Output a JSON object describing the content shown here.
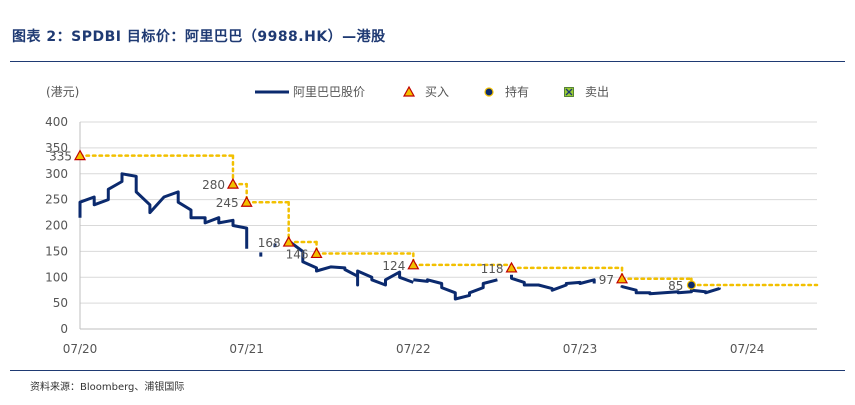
{
  "figure_title": "图表 2：SPDBI 目标价：阿里巴巴（9988.HK）—港股",
  "source": "资料来源：Bloomberg、浦银国际",
  "colors": {
    "price_line": "#0B2A6E",
    "target_line": "#F2C000",
    "buy_marker": "#F2C000",
    "hold_marker": "#0B2A6E",
    "sell_marker": "#9ACD32",
    "title": "#1F3A73"
  },
  "chart_data": {
    "type": "line",
    "ylabel": "(港元)",
    "ylim": [
      0,
      400
    ],
    "yticks": [
      0,
      50,
      100,
      150,
      200,
      250,
      300,
      350,
      400
    ],
    "xlim": [
      "2020-07",
      "2024-12"
    ],
    "xticks": [
      "07/20",
      "07/21",
      "07/22",
      "07/23",
      "07/24"
    ],
    "grid": true,
    "legend": {
      "position": "top",
      "items": [
        {
          "label": "阿里巴巴股价",
          "kind": "line"
        },
        {
          "label": "买入",
          "kind": "buy-marker"
        },
        {
          "label": "持有",
          "kind": "hold-marker"
        },
        {
          "label": "卖出",
          "kind": "sell-marker"
        }
      ]
    },
    "series": [
      {
        "name": "阿里巴巴股价",
        "segments": [
          [
            [
              "2020-07",
              215
            ],
            [
              "2020-07",
              245
            ],
            [
              "2020-08",
              255
            ],
            [
              "2020-08",
              240
            ],
            [
              "2020-09",
              250
            ],
            [
              "2020-09",
              270
            ],
            [
              "2020-10",
              285
            ],
            [
              "2020-10",
              300
            ],
            [
              "2020-11",
              295
            ],
            [
              "2020-11",
              265
            ],
            [
              "2020-12",
              240
            ],
            [
              "2020-12",
              225
            ],
            [
              "2021-01",
              255
            ],
            [
              "2021-02",
              265
            ],
            [
              "2021-02",
              245
            ],
            [
              "2021-03",
              230
            ],
            [
              "2021-03",
              215
            ],
            [
              "2021-04",
              215
            ],
            [
              "2021-04",
              205
            ],
            [
              "2021-05",
              215
            ],
            [
              "2021-05",
              205
            ],
            [
              "2021-06",
              210
            ],
            [
              "2021-06",
              200
            ],
            [
              "2021-07",
              195
            ],
            [
              "2021-07",
              185
            ],
            [
              "2021-07",
              155
            ]
          ],
          [
            [
              "2021-08",
              148
            ],
            [
              "2021-08",
              140
            ]
          ],
          [
            [
              "2021-09",
              165
            ],
            [
              "2021-09",
              158
            ]
          ],
          [
            [
              "2021-10",
              160
            ],
            [
              "2021-10",
              170
            ],
            [
              "2021-11",
              150
            ],
            [
              "2021-11",
              130
            ],
            [
              "2021-12",
              118
            ],
            [
              "2021-12",
              112
            ],
            [
              "2022-01",
              120
            ],
            [
              "2022-02",
              118
            ],
            [
              "2022-02",
              115
            ],
            [
              "2022-03",
              102
            ],
            [
              "2022-03",
              85
            ],
            [
              "2022-03",
              112
            ],
            [
              "2022-04",
              100
            ],
            [
              "2022-04",
              95
            ],
            [
              "2022-05",
              85
            ],
            [
              "2022-05",
              95
            ],
            [
              "2022-06",
              110
            ],
            [
              "2022-06",
              100
            ],
            [
              "2022-07",
              90
            ]
          ],
          [
            [
              "2022-07",
              95
            ],
            [
              "2022-08",
              92
            ],
            [
              "2022-08",
              95
            ],
            [
              "2022-09",
              88
            ],
            [
              "2022-09",
              80
            ],
            [
              "2022-10",
              70
            ],
            [
              "2022-10",
              58
            ],
            [
              "2022-11",
              65
            ],
            [
              "2022-11",
              70
            ],
            [
              "2022-12",
              80
            ],
            [
              "2022-12",
              88
            ],
            [
              "2023-01",
              95
            ]
          ],
          [
            [
              "2023-02",
              105
            ],
            [
              "2023-02",
              98
            ],
            [
              "2023-03",
              90
            ],
            [
              "2023-03",
              85
            ],
            [
              "2023-04",
              85
            ],
            [
              "2023-05",
              78
            ],
            [
              "2023-05",
              75
            ],
            [
              "2023-06",
              85
            ],
            [
              "2023-06",
              88
            ],
            [
              "2023-07",
              90
            ],
            [
              "2023-07",
              88
            ],
            [
              "2023-08",
              95
            ],
            [
              "2023-08",
              88
            ]
          ],
          [
            [
              "2023-10",
              80
            ],
            [
              "2023-10",
              82
            ],
            [
              "2023-11",
              75
            ],
            [
              "2023-11",
              70
            ],
            [
              "2023-12",
              70
            ],
            [
              "2023-12",
              68
            ],
            [
              "2024-01",
              70
            ],
            [
              "2024-02",
              72
            ],
            [
              "2024-02",
              70
            ],
            [
              "2024-03",
              72
            ],
            [
              "2024-03",
              75
            ],
            [
              "2024-04",
              72
            ],
            [
              "2024-04",
              70
            ],
            [
              "2024-05",
              78
            ],
            [
              "2024-05",
              80
            ]
          ]
        ]
      }
    ],
    "target_prices": [
      {
        "date": "2020-07",
        "value": 335,
        "rating": "买入",
        "label": "335"
      },
      {
        "date": "2021-06",
        "value": 280,
        "rating": "买入",
        "label": "280"
      },
      {
        "date": "2021-07",
        "value": 245,
        "rating": "买入",
        "label": "245"
      },
      {
        "date": "2021-10",
        "value": 168,
        "rating": "买入",
        "label": "168"
      },
      {
        "date": "2021-12",
        "value": 146,
        "rating": "买入",
        "label": "146"
      },
      {
        "date": "2022-07",
        "value": 124,
        "rating": "买入",
        "label": "124"
      },
      {
        "date": "2023-02",
        "value": 118,
        "rating": "买入",
        "label": "118"
      },
      {
        "date": "2023-10",
        "value": 97,
        "rating": "买入",
        "label": "97"
      },
      {
        "date": "2024-03",
        "value": 85,
        "rating": "持有",
        "label": "85"
      }
    ],
    "target_end": "2024-12"
  }
}
